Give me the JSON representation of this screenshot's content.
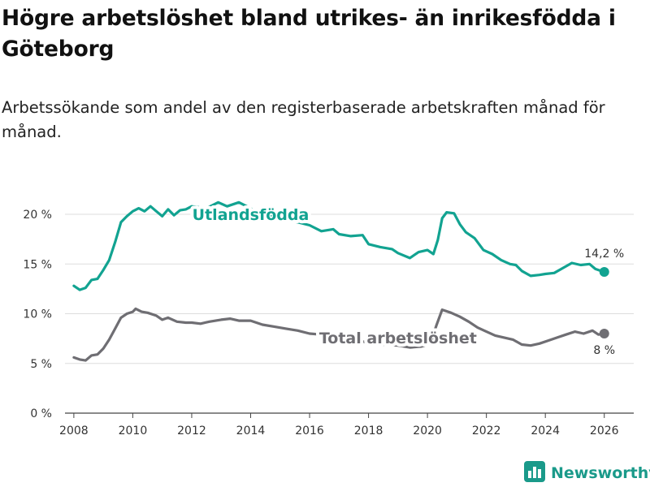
{
  "header": {
    "title": "Högre arbetslöshet bland utrikes- än inrikesfödda i Göteborg",
    "subtitle": "Arbetssökande som andel av den registerbaserade arbetskraften månad för månad."
  },
  "brand": {
    "name": "Newsworthy",
    "icon": "bar-chart-logo-icon"
  },
  "colors": {
    "foreign": "#12a391",
    "total": "#6f6e73",
    "grid": "#dddddd",
    "axis": "#444444"
  },
  "chart_data": {
    "type": "line",
    "title": "Högre arbetslöshet bland utrikes- än inrikesfödda i Göteborg",
    "xlabel": "",
    "ylabel": "",
    "xlim": [
      2007.7,
      2027.0
    ],
    "ylim": [
      0,
      20
    ],
    "x_ticks": [
      2008,
      2010,
      2012,
      2014,
      2016,
      2018,
      2020,
      2022,
      2024,
      2026
    ],
    "x_tick_labels": [
      "2008",
      "2010",
      "2012",
      "2014",
      "2016",
      "2018",
      "2020",
      "2022",
      "2024",
      "2026"
    ],
    "y_ticks": [
      0,
      5,
      10,
      15,
      20
    ],
    "y_tick_labels": [
      "0 %",
      "5 %",
      "10 %",
      "15 %",
      "20 %"
    ],
    "grid": true,
    "series": [
      {
        "name": "Utlandsfödda",
        "key": "foreign",
        "end_label": "14,2 %",
        "end_value": 14.2,
        "points": [
          [
            2008.0,
            12.8
          ],
          [
            2008.2,
            12.4
          ],
          [
            2008.4,
            12.6
          ],
          [
            2008.6,
            13.4
          ],
          [
            2008.8,
            13.5
          ],
          [
            2009.0,
            14.4
          ],
          [
            2009.2,
            15.4
          ],
          [
            2009.4,
            17.2
          ],
          [
            2009.6,
            19.2
          ],
          [
            2009.8,
            19.8
          ],
          [
            2010.0,
            20.3
          ],
          [
            2010.2,
            20.6
          ],
          [
            2010.4,
            20.3
          ],
          [
            2010.6,
            20.8
          ],
          [
            2010.8,
            20.3
          ],
          [
            2011.0,
            19.8
          ],
          [
            2011.2,
            20.5
          ],
          [
            2011.4,
            19.9
          ],
          [
            2011.6,
            20.4
          ],
          [
            2011.8,
            20.5
          ],
          [
            2012.0,
            20.8
          ],
          [
            2012.5,
            20.6
          ],
          [
            2012.9,
            21.2
          ],
          [
            2013.2,
            20.8
          ],
          [
            2013.6,
            21.2
          ],
          [
            2014.0,
            20.6
          ],
          [
            2014.4,
            19.6
          ],
          [
            2014.8,
            19.8
          ],
          [
            2015.2,
            19.4
          ],
          [
            2015.6,
            19.2
          ],
          [
            2016.0,
            18.9
          ],
          [
            2016.4,
            18.3
          ],
          [
            2016.8,
            18.5
          ],
          [
            2017.0,
            18.0
          ],
          [
            2017.4,
            17.8
          ],
          [
            2017.8,
            17.9
          ],
          [
            2018.0,
            17.0
          ],
          [
            2018.4,
            16.7
          ],
          [
            2018.8,
            16.5
          ],
          [
            2019.0,
            16.1
          ],
          [
            2019.4,
            15.6
          ],
          [
            2019.7,
            16.2
          ],
          [
            2020.0,
            16.4
          ],
          [
            2020.2,
            16.0
          ],
          [
            2020.35,
            17.4
          ],
          [
            2020.5,
            19.6
          ],
          [
            2020.65,
            20.2
          ],
          [
            2020.9,
            20.1
          ],
          [
            2021.1,
            19.0
          ],
          [
            2021.3,
            18.2
          ],
          [
            2021.6,
            17.6
          ],
          [
            2021.9,
            16.4
          ],
          [
            2022.2,
            16.0
          ],
          [
            2022.5,
            15.4
          ],
          [
            2022.8,
            15.0
          ],
          [
            2023.0,
            14.9
          ],
          [
            2023.2,
            14.3
          ],
          [
            2023.5,
            13.8
          ],
          [
            2023.8,
            13.9
          ],
          [
            2024.0,
            14.0
          ],
          [
            2024.3,
            14.1
          ],
          [
            2024.6,
            14.6
          ],
          [
            2024.9,
            15.1
          ],
          [
            2025.2,
            14.9
          ],
          [
            2025.5,
            15.0
          ],
          [
            2025.7,
            14.5
          ],
          [
            2026.0,
            14.2
          ]
        ]
      },
      {
        "name": "Total arbetslöshet",
        "key": "total",
        "end_label": "8 %",
        "end_value": 8.0,
        "points": [
          [
            2008.0,
            5.6
          ],
          [
            2008.2,
            5.4
          ],
          [
            2008.4,
            5.3
          ],
          [
            2008.6,
            5.8
          ],
          [
            2008.8,
            5.9
          ],
          [
            2009.0,
            6.5
          ],
          [
            2009.2,
            7.4
          ],
          [
            2009.4,
            8.5
          ],
          [
            2009.6,
            9.6
          ],
          [
            2009.8,
            10.0
          ],
          [
            2010.0,
            10.2
          ],
          [
            2010.1,
            10.5
          ],
          [
            2010.3,
            10.2
          ],
          [
            2010.5,
            10.1
          ],
          [
            2010.8,
            9.8
          ],
          [
            2011.0,
            9.4
          ],
          [
            2011.2,
            9.6
          ],
          [
            2011.5,
            9.2
          ],
          [
            2011.8,
            9.1
          ],
          [
            2012.0,
            9.1
          ],
          [
            2012.3,
            9.0
          ],
          [
            2012.6,
            9.2
          ],
          [
            2013.0,
            9.4
          ],
          [
            2013.3,
            9.5
          ],
          [
            2013.6,
            9.3
          ],
          [
            2014.0,
            9.3
          ],
          [
            2014.4,
            8.9
          ],
          [
            2014.8,
            8.7
          ],
          [
            2015.2,
            8.5
          ],
          [
            2015.6,
            8.3
          ],
          [
            2016.0,
            8.0
          ],
          [
            2016.4,
            7.9
          ],
          [
            2016.8,
            7.7
          ],
          [
            2017.2,
            7.5
          ],
          [
            2017.6,
            7.3
          ],
          [
            2018.0,
            7.1
          ],
          [
            2018.5,
            6.9
          ],
          [
            2019.0,
            6.8
          ],
          [
            2019.4,
            6.6
          ],
          [
            2019.8,
            6.7
          ],
          [
            2020.1,
            7.0
          ],
          [
            2020.3,
            8.8
          ],
          [
            2020.5,
            10.4
          ],
          [
            2020.8,
            10.1
          ],
          [
            2021.1,
            9.7
          ],
          [
            2021.4,
            9.2
          ],
          [
            2021.7,
            8.6
          ],
          [
            2022.0,
            8.2
          ],
          [
            2022.3,
            7.8
          ],
          [
            2022.6,
            7.6
          ],
          [
            2022.9,
            7.4
          ],
          [
            2023.2,
            6.9
          ],
          [
            2023.5,
            6.8
          ],
          [
            2023.8,
            7.0
          ],
          [
            2024.1,
            7.3
          ],
          [
            2024.4,
            7.6
          ],
          [
            2024.7,
            7.9
          ],
          [
            2025.0,
            8.2
          ],
          [
            2025.3,
            8.0
          ],
          [
            2025.6,
            8.3
          ],
          [
            2025.8,
            7.9
          ],
          [
            2026.0,
            8.0
          ]
        ]
      }
    ],
    "annotations": [
      {
        "text": "Utlandsfödda",
        "series": "foreign",
        "x": 2014.0,
        "y": 20.0
      },
      {
        "text": "Total arbetslöshet",
        "series": "total",
        "x": 2019.0,
        "y": 7.6
      }
    ]
  }
}
